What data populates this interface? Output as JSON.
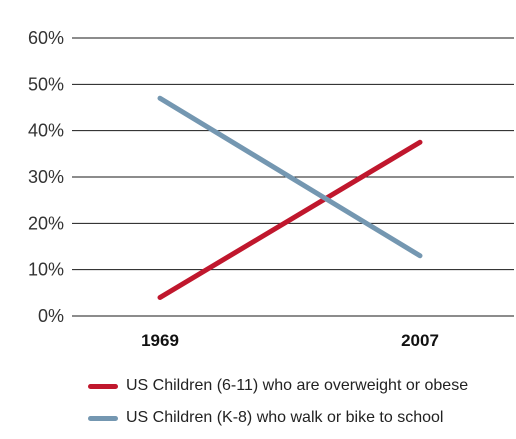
{
  "chart_data": {
    "type": "line",
    "categories": [
      "1969",
      "2007"
    ],
    "series": [
      {
        "name": "US Children (6-11) who are overweight or obese",
        "color": "#c0172d",
        "values": [
          4,
          37.5
        ]
      },
      {
        "name": "US Children (K-8) who walk or bike to school",
        "color": "#7497b1",
        "values": [
          47,
          13
        ]
      }
    ],
    "y_ticks": [
      "0%",
      "10%",
      "20%",
      "30%",
      "40%",
      "50%",
      "60%"
    ],
    "ylim": [
      0,
      60
    ],
    "grid": true,
    "legend_position": "bottom"
  }
}
